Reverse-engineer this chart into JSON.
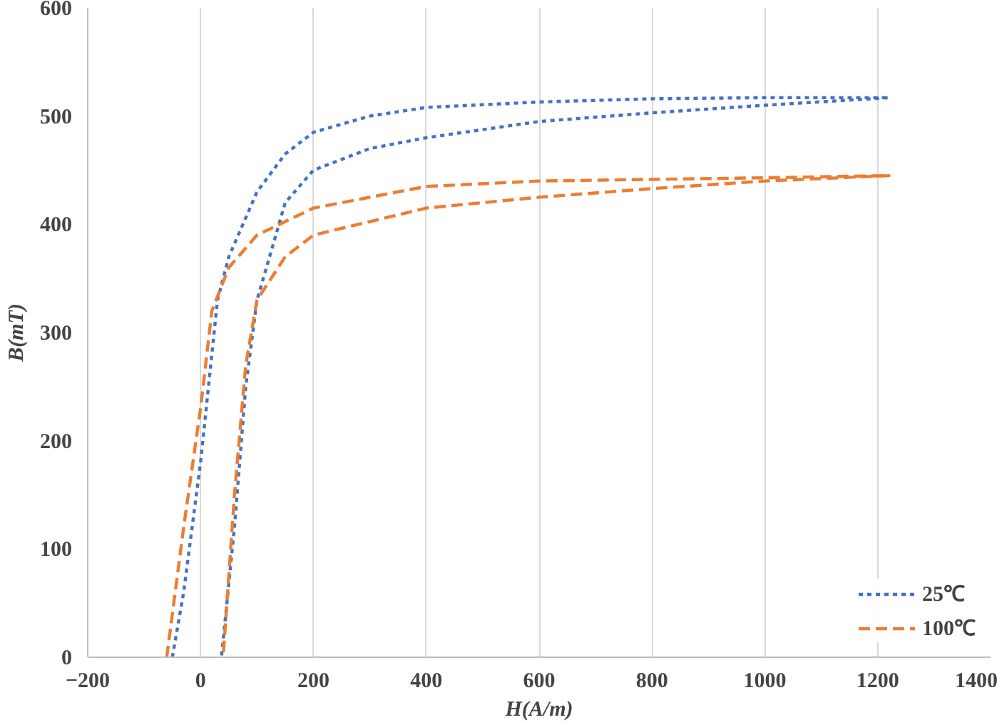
{
  "chart_data": {
    "type": "line",
    "xlabel": "H(A/m)",
    "ylabel": "B(mT)",
    "xlim": [
      -200,
      1400
    ],
    "xticks": [
      -200,
      0,
      200,
      400,
      600,
      800,
      1000,
      1200,
      1400
    ],
    "ylim": [
      0,
      600
    ],
    "yticks": [
      0,
      100,
      200,
      300,
      400,
      500,
      600
    ],
    "grid": "x",
    "legend": "bottom right",
    "marker": "none",
    "series": [
      {
        "name": "25℃",
        "color": "#4472c4",
        "line_style": "dotted",
        "x": [
          -50,
          -30,
          0,
          30,
          50,
          100,
          150,
          200,
          300,
          400,
          600,
          800,
          1000,
          1220,
          1000,
          800,
          600,
          400,
          300,
          200,
          150,
          100,
          80,
          60,
          37
        ],
        "values": [
          0,
          60,
          180,
          330,
          370,
          430,
          465,
          485,
          500,
          508,
          513,
          516,
          517,
          517,
          510,
          503,
          495,
          480,
          470,
          450,
          420,
          330,
          250,
          120,
          0
        ]
      },
      {
        "name": "100℃",
        "color": "#ed7d31",
        "line_style": "dashed",
        "x": [
          -60,
          -30,
          0,
          20,
          50,
          100,
          200,
          400,
          600,
          1000,
          1220,
          1000,
          800,
          600,
          400,
          200,
          150,
          100,
          80,
          60,
          40
        ],
        "values": [
          0,
          120,
          230,
          320,
          360,
          390,
          415,
          435,
          440,
          443,
          445,
          440,
          433,
          425,
          415,
          390,
          370,
          330,
          270,
          150,
          0
        ]
      }
    ]
  }
}
